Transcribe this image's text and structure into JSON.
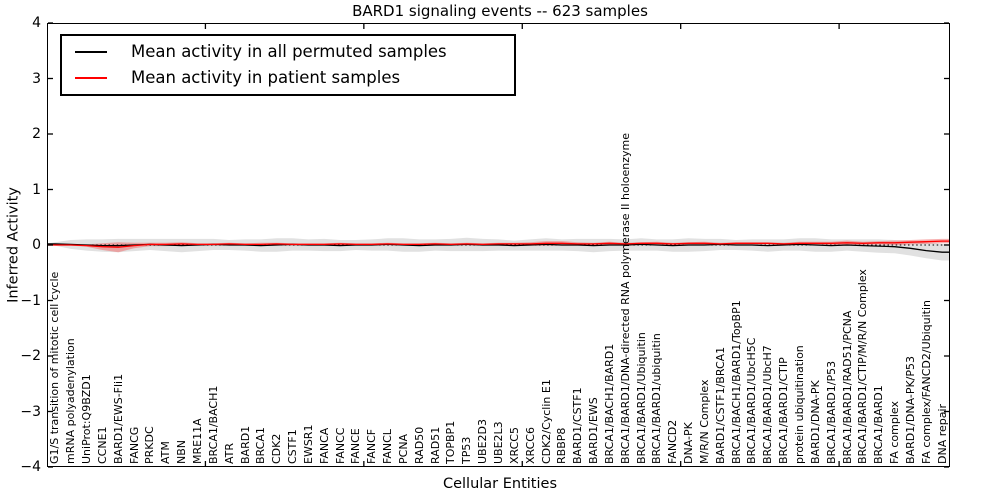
{
  "header": {
    "title": "BARD1 signaling events -- 623 samples"
  },
  "axes": {
    "ylabel": "Inferred Activity",
    "xlabel": "Cellular Entities"
  },
  "legend": {
    "items": [
      {
        "label": "Mean activity in all permuted samples",
        "color": "#000000"
      },
      {
        "label": "Mean activity in patient samples",
        "color": "#ff0000"
      }
    ]
  },
  "chart_data": {
    "type": "line",
    "title": "BARD1 signaling events -- 623 samples",
    "xlabel": "Cellular Entities",
    "ylabel": "Inferred Activity",
    "ylim": [
      -4,
      4
    ],
    "xlim": [
      0,
      57
    ],
    "yticks": [
      -4,
      -3,
      -2,
      -1,
      0,
      1,
      2,
      3,
      4
    ],
    "xticks": [
      10,
      20,
      30,
      40,
      50
    ],
    "grid": false,
    "legend_position": "upper left",
    "zero_line": "dotted",
    "categories": [
      "G1/S transition of mitotic cell cycle",
      "mRNA polyadenylation",
      "UniProt:Q9BZD1",
      "CCNE1",
      "BARD1/EWS-Fli1",
      "FANCG",
      "PRKDC",
      "ATM",
      "NBN",
      "MRE11A",
      "BRCA1/BACH1",
      "ATR",
      "BARD1",
      "BRCA1",
      "CDK2",
      "CSTF1",
      "EWSR1",
      "FANCA",
      "FANCC",
      "FANCE",
      "FANCF",
      "FANCL",
      "PCNA",
      "RAD50",
      "RAD51",
      "TOPBP1",
      "TP53",
      "UBE2D3",
      "UBE2L3",
      "XRCC5",
      "XRCC6",
      "CDK2/Cyclin E1",
      "RBBP8",
      "BARD1/CSTF1",
      "BARD1/EWS",
      "BRCA1/BACH1/BARD1",
      "BRCA1/BARD1/DNA-directed RNA polymerase II holoenzyme",
      "BRCA1/BARD1/Ubiquitin",
      "BRCA1/BARD1/ubiquitin",
      "FANCD2",
      "DNA-PK",
      "M/R/N Complex",
      "BARD1/CSTF1/BRCA1",
      "BRCA1/BACH1/BARD1/TopBP1",
      "BRCA1/BARD1/UbcH5C",
      "BRCA1/BARD1/UbcH7",
      "BRCA1/BARD1/CTIP",
      "protein ubiquitination",
      "BARD1/DNA-PK",
      "BRCA1/BARD1/P53",
      "BRCA1/BARD1/RAD51/PCNA",
      "BRCA1/BARD1/CTIP/M/R/N Complex",
      "BRCA1/BARD1",
      "FA complex",
      "BARD1/DNA-PK/P53",
      "FA complex/FANCD2/Ubiquitin",
      "DNA repair"
    ],
    "series": [
      {
        "name": "Mean activity in all permuted samples",
        "color": "#000000",
        "values": [
          0.02,
          0.01,
          0.0,
          -0.01,
          -0.01,
          0.0,
          0.01,
          0.0,
          -0.01,
          0.0,
          0.01,
          0.0,
          0.0,
          -0.01,
          0.0,
          0.01,
          0.0,
          0.0,
          -0.01,
          0.0,
          0.0,
          0.01,
          0.0,
          -0.01,
          0.0,
          0.0,
          0.01,
          0.0,
          0.0,
          -0.01,
          0.0,
          0.01,
          0.0,
          0.0,
          -0.01,
          0.0,
          0.0,
          0.01,
          0.0,
          -0.01,
          0.0,
          0.0,
          0.01,
          0.0,
          0.0,
          -0.01,
          0.0,
          0.01,
          0.0,
          -0.01,
          0.0,
          -0.01,
          -0.02,
          -0.03,
          -0.06,
          -0.1,
          -0.13
        ]
      },
      {
        "name": "Mean activity in patient samples",
        "color": "#ff0000",
        "values": [
          0.0,
          0.0,
          -0.01,
          -0.03,
          -0.04,
          -0.01,
          0.01,
          0.01,
          0.02,
          0.01,
          0.01,
          0.02,
          0.01,
          0.01,
          0.02,
          0.01,
          0.01,
          0.01,
          0.02,
          0.01,
          0.01,
          0.02,
          0.01,
          0.01,
          0.02,
          0.01,
          0.02,
          0.01,
          0.02,
          0.02,
          0.02,
          0.03,
          0.03,
          0.02,
          0.02,
          0.03,
          0.02,
          0.03,
          0.03,
          0.02,
          0.03,
          0.03,
          0.02,
          0.03,
          0.03,
          0.03,
          0.02,
          0.03,
          0.03,
          0.03,
          0.04,
          0.03,
          0.04,
          0.04,
          0.05,
          0.06,
          0.07
        ]
      }
    ],
    "bands": [
      {
        "name": "permuted samples spread",
        "center_series": 0,
        "color": "#d9d9d9",
        "opacity": 0.8,
        "halfwidths": [
          0.03,
          0.08,
          0.1,
          0.11,
          0.12,
          0.11,
          0.1,
          0.11,
          0.12,
          0.11,
          0.1,
          0.09,
          0.1,
          0.11,
          0.12,
          0.11,
          0.1,
          0.11,
          0.1,
          0.09,
          0.1,
          0.11,
          0.12,
          0.11,
          0.1,
          0.11,
          0.12,
          0.11,
          0.1,
          0.09,
          0.1,
          0.11,
          0.1,
          0.11,
          0.12,
          0.11,
          0.1,
          0.11,
          0.1,
          0.11,
          0.12,
          0.11,
          0.1,
          0.09,
          0.1,
          0.11,
          0.1,
          0.11,
          0.12,
          0.11,
          0.1,
          0.11,
          0.12,
          0.12,
          0.13,
          0.14,
          0.15
        ]
      },
      {
        "name": "patient samples spread",
        "center_series": 1,
        "color": "#f07070",
        "opacity": 0.55,
        "halfwidths": [
          0.01,
          0.01,
          0.02,
          0.06,
          0.09,
          0.05,
          0.03,
          0.03,
          0.03,
          0.02,
          0.02,
          0.02,
          0.02,
          0.03,
          0.02,
          0.02,
          0.02,
          0.02,
          0.02,
          0.02,
          0.02,
          0.02,
          0.02,
          0.02,
          0.02,
          0.02,
          0.02,
          0.02,
          0.02,
          0.02,
          0.03,
          0.04,
          0.04,
          0.03,
          0.02,
          0.03,
          0.02,
          0.02,
          0.03,
          0.02,
          0.02,
          0.03,
          0.02,
          0.02,
          0.02,
          0.02,
          0.02,
          0.03,
          0.03,
          0.03,
          0.04,
          0.03,
          0.03,
          0.04,
          0.04,
          0.04,
          0.04
        ]
      }
    ]
  }
}
